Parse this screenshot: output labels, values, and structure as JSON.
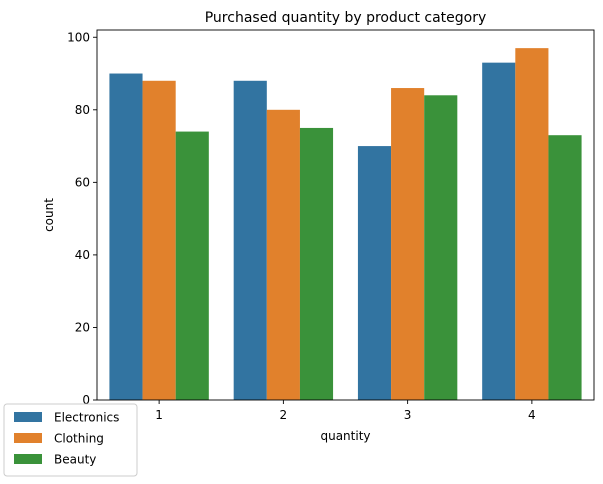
{
  "chart_data": {
    "type": "bar",
    "title": "Purchased quantity by product category",
    "xlabel": "quantity",
    "ylabel": "count",
    "categories": [
      "1",
      "2",
      "3",
      "4"
    ],
    "series": [
      {
        "name": "Electronics",
        "values": [
          90,
          88,
          70,
          93
        ],
        "color": "#3274a1"
      },
      {
        "name": "Clothing",
        "values": [
          88,
          80,
          86,
          97
        ],
        "color": "#e1812c"
      },
      {
        "name": "Beauty",
        "values": [
          74,
          75,
          84,
          73
        ],
        "color": "#3a923a"
      }
    ],
    "ylim": [
      0,
      102
    ],
    "yticks": [
      0,
      20,
      40,
      60,
      80,
      100
    ],
    "grid": false,
    "legend_position": "bottom-left"
  }
}
